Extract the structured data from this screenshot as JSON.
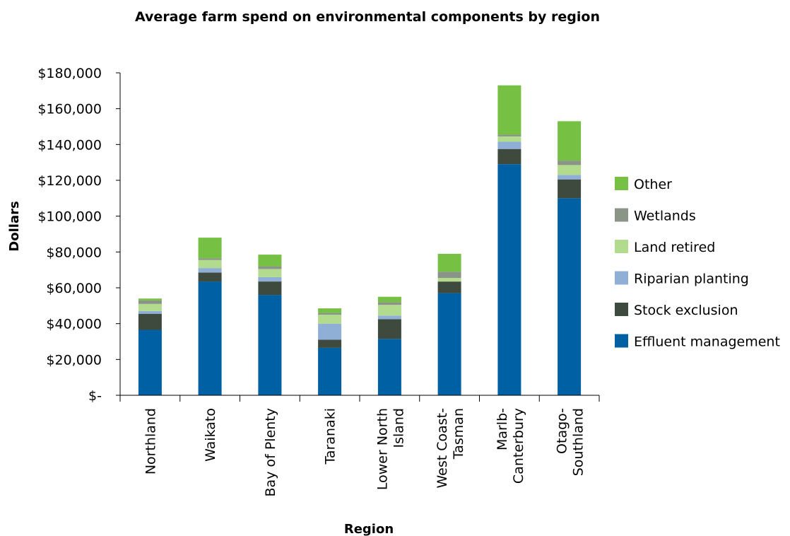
{
  "chart_data": {
    "type": "bar",
    "stacked": true,
    "title": "Average farm spend on environmental components by region",
    "xlabel": "Region",
    "ylabel": "Dollars",
    "ylim": [
      0,
      180000
    ],
    "y_ticks": [
      0,
      20000,
      40000,
      60000,
      80000,
      100000,
      120000,
      140000,
      160000,
      180000
    ],
    "y_tick_labels": [
      "$-",
      "$20,000",
      "$40,000",
      "$60,000",
      "$80,000",
      "$100,000",
      "$120,000",
      "$140,000",
      "$160,000",
      "$180,000"
    ],
    "categories": [
      "Northland",
      "Waikato",
      "Bay of Plenty",
      "Taranaki",
      "Lower North Island",
      "West Coast-Tasman",
      "Marlb-Canterbury",
      "Otago-Southland"
    ],
    "category_label_lines": [
      [
        "Northland"
      ],
      [
        "Waikato"
      ],
      [
        "Bay of Plenty"
      ],
      [
        "Taranaki"
      ],
      [
        "Lower North",
        "Island"
      ],
      [
        "West Coast-",
        "Tasman"
      ],
      [
        "Marlb-",
        "Canterbury"
      ],
      [
        "Otago-",
        "Southland"
      ]
    ],
    "grid": false,
    "legend_position": "right",
    "series": [
      {
        "name": "Effluent management",
        "color": "#0060A4",
        "values": [
          36500,
          63500,
          56000,
          26500,
          31500,
          57000,
          129000,
          110000
        ]
      },
      {
        "name": "Stock exclusion",
        "color": "#3F4A3E",
        "values": [
          9000,
          5000,
          7500,
          4500,
          11000,
          6500,
          8500,
          10500
        ]
      },
      {
        "name": "Riparian planting",
        "color": "#8FAFD7",
        "values": [
          1500,
          2500,
          2500,
          9000,
          2000,
          0,
          4000,
          2500
        ]
      },
      {
        "name": "Land retired",
        "color": "#B3DB8E",
        "values": [
          4000,
          4500,
          4500,
          5000,
          6000,
          2000,
          3000,
          5500
        ]
      },
      {
        "name": "Wetlands",
        "color": "#8A9587",
        "values": [
          2000,
          1000,
          1500,
          1000,
          1500,
          3500,
          1000,
          2500
        ]
      },
      {
        "name": "Other",
        "color": "#76C043",
        "values": [
          1000,
          11500,
          6500,
          2500,
          3000,
          10000,
          27500,
          22000
        ]
      }
    ]
  }
}
